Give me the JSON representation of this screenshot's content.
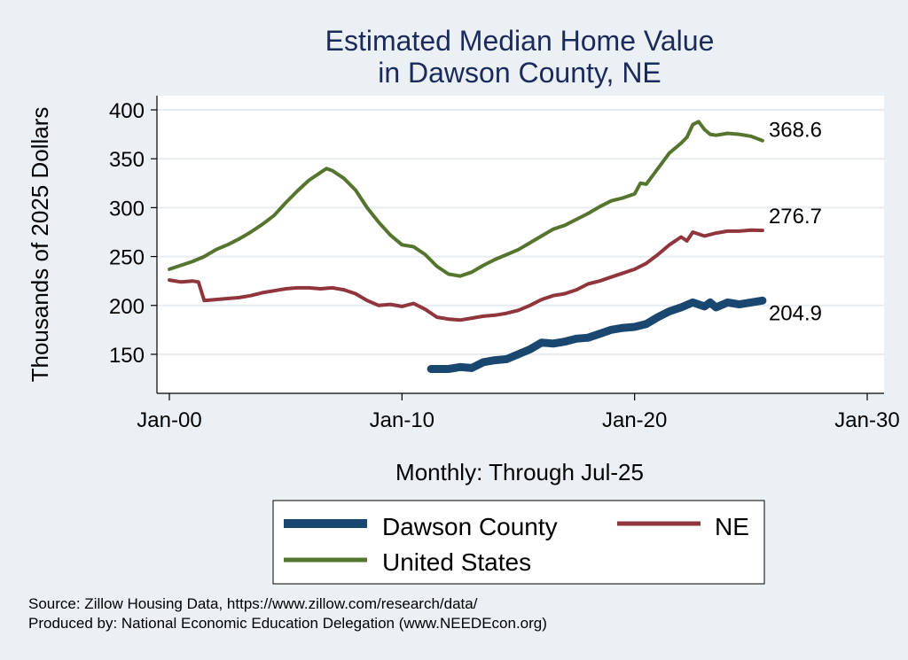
{
  "chart_data": {
    "type": "line",
    "title_line1": "Estimated Median Home Value",
    "title_line2": "in Dawson County, NE",
    "xlabel": "Monthly: Through Jul-25",
    "ylabel": "Thousands of 2025 Dollars",
    "x_ticks": [
      "Jan-00",
      "Jan-10",
      "Jan-20",
      "Jan-30"
    ],
    "x_tick_values": [
      2000,
      2010,
      2020,
      2030
    ],
    "xlim": [
      2000,
      2030
    ],
    "y_ticks": [
      "150",
      "200",
      "250",
      "300",
      "350",
      "400"
    ],
    "y_tick_values": [
      150,
      200,
      250,
      300,
      350,
      400
    ],
    "ylim": [
      130,
      410
    ],
    "grid": "horizontal",
    "legend_position": "bottom",
    "series": [
      {
        "name": "Dawson County",
        "color": "#1a476f",
        "end_label": "204.9",
        "points": [
          [
            2011.25,
            135
          ],
          [
            2012,
            135
          ],
          [
            2012.5,
            137
          ],
          [
            2013,
            136
          ],
          [
            2013.5,
            142
          ],
          [
            2014,
            144
          ],
          [
            2014.5,
            145
          ],
          [
            2015,
            150
          ],
          [
            2015.5,
            155
          ],
          [
            2016,
            162
          ],
          [
            2016.5,
            161
          ],
          [
            2017,
            163
          ],
          [
            2017.5,
            166
          ],
          [
            2018,
            167
          ],
          [
            2018.5,
            171
          ],
          [
            2019,
            175
          ],
          [
            2019.5,
            177
          ],
          [
            2020,
            178
          ],
          [
            2020.5,
            181
          ],
          [
            2021,
            188
          ],
          [
            2021.5,
            194
          ],
          [
            2022,
            198
          ],
          [
            2022.5,
            203
          ],
          [
            2023,
            199
          ],
          [
            2023.25,
            203
          ],
          [
            2023.5,
            198
          ],
          [
            2024,
            203
          ],
          [
            2024.5,
            201
          ],
          [
            2025,
            203
          ],
          [
            2025.5,
            204.9
          ]
        ]
      },
      {
        "name": "NE",
        "color": "#90353b",
        "end_label": "276.7",
        "points": [
          [
            2000,
            226
          ],
          [
            2000.5,
            224
          ],
          [
            2001,
            225
          ],
          [
            2001.25,
            224
          ],
          [
            2001.5,
            205
          ],
          [
            2002,
            206
          ],
          [
            2002.5,
            207
          ],
          [
            2003,
            208
          ],
          [
            2003.5,
            210
          ],
          [
            2004,
            213
          ],
          [
            2004.5,
            215
          ],
          [
            2005,
            217
          ],
          [
            2005.5,
            218
          ],
          [
            2006,
            218
          ],
          [
            2006.5,
            217
          ],
          [
            2007,
            218
          ],
          [
            2007.5,
            216
          ],
          [
            2008,
            212
          ],
          [
            2008.5,
            205
          ],
          [
            2009,
            200
          ],
          [
            2009.5,
            201
          ],
          [
            2010,
            199
          ],
          [
            2010.5,
            202
          ],
          [
            2011,
            196
          ],
          [
            2011.5,
            188
          ],
          [
            2012,
            186
          ],
          [
            2012.5,
            185
          ],
          [
            2013,
            187
          ],
          [
            2013.5,
            189
          ],
          [
            2014,
            190
          ],
          [
            2014.5,
            192
          ],
          [
            2015,
            195
          ],
          [
            2015.5,
            200
          ],
          [
            2016,
            206
          ],
          [
            2016.5,
            210
          ],
          [
            2017,
            212
          ],
          [
            2017.5,
            216
          ],
          [
            2018,
            222
          ],
          [
            2018.5,
            225
          ],
          [
            2019,
            229
          ],
          [
            2019.5,
            233
          ],
          [
            2020,
            237
          ],
          [
            2020.5,
            243
          ],
          [
            2021,
            252
          ],
          [
            2021.5,
            262
          ],
          [
            2022,
            270
          ],
          [
            2022.25,
            266
          ],
          [
            2022.5,
            275
          ],
          [
            2023,
            271
          ],
          [
            2023.5,
            274
          ],
          [
            2024,
            276
          ],
          [
            2024.5,
            276
          ],
          [
            2025,
            277
          ],
          [
            2025.5,
            276.7
          ]
        ]
      },
      {
        "name": "United States",
        "color": "#55752f",
        "end_label": "368.6",
        "points": [
          [
            2000,
            237
          ],
          [
            2000.5,
            241
          ],
          [
            2001,
            245
          ],
          [
            2001.5,
            250
          ],
          [
            2002,
            257
          ],
          [
            2002.5,
            262
          ],
          [
            2003,
            268
          ],
          [
            2003.5,
            275
          ],
          [
            2004,
            283
          ],
          [
            2004.5,
            292
          ],
          [
            2005,
            305
          ],
          [
            2005.5,
            317
          ],
          [
            2006,
            328
          ],
          [
            2006.5,
            336
          ],
          [
            2006.75,
            340
          ],
          [
            2007,
            338
          ],
          [
            2007.5,
            330
          ],
          [
            2008,
            318
          ],
          [
            2008.5,
            300
          ],
          [
            2009,
            285
          ],
          [
            2009.5,
            272
          ],
          [
            2010,
            262
          ],
          [
            2010.5,
            260
          ],
          [
            2011,
            252
          ],
          [
            2011.5,
            240
          ],
          [
            2012,
            232
          ],
          [
            2012.5,
            230
          ],
          [
            2013,
            234
          ],
          [
            2013.5,
            241
          ],
          [
            2014,
            247
          ],
          [
            2014.5,
            252
          ],
          [
            2015,
            257
          ],
          [
            2015.5,
            264
          ],
          [
            2016,
            271
          ],
          [
            2016.5,
            278
          ],
          [
            2017,
            282
          ],
          [
            2017.5,
            288
          ],
          [
            2018,
            294
          ],
          [
            2018.5,
            301
          ],
          [
            2019,
            307
          ],
          [
            2019.5,
            310
          ],
          [
            2020,
            314
          ],
          [
            2020.25,
            325
          ],
          [
            2020.5,
            324
          ],
          [
            2021,
            340
          ],
          [
            2021.5,
            356
          ],
          [
            2022,
            366
          ],
          [
            2022.25,
            372
          ],
          [
            2022.5,
            385
          ],
          [
            2022.75,
            388
          ],
          [
            2023,
            380
          ],
          [
            2023.25,
            375
          ],
          [
            2023.5,
            374
          ],
          [
            2024,
            376
          ],
          [
            2024.5,
            375
          ],
          [
            2025,
            373
          ],
          [
            2025.5,
            368.6
          ]
        ]
      }
    ]
  },
  "notes": {
    "source": "Source: Zillow Housing Data, https://www.zillow.com/research/data/",
    "produced_by": "Produced by: National Economic Education Delegation (www.NEEDEcon.org)"
  }
}
